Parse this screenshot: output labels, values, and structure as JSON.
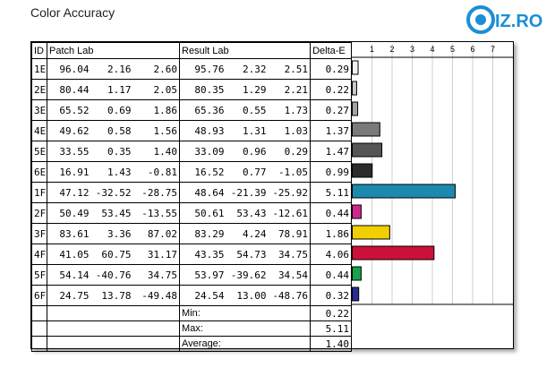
{
  "header": {
    "title": "Color Accuracy",
    "logo_text": "IZ.RO",
    "logo_color": "#1a8fd6"
  },
  "table": {
    "columns": [
      "ID",
      "Patch Lab",
      "Result Lab",
      "Delta-E"
    ],
    "rows": [
      {
        "id": "1E",
        "patch": [
          "96.04",
          "2.16",
          "2.60"
        ],
        "result": [
          "95.76",
          "2.32",
          "2.51"
        ],
        "de": "0.29"
      },
      {
        "id": "2E",
        "patch": [
          "80.44",
          "1.17",
          "2.05"
        ],
        "result": [
          "80.35",
          "1.29",
          "2.21"
        ],
        "de": "0.22"
      },
      {
        "id": "3E",
        "patch": [
          "65.52",
          "0.69",
          "1.86"
        ],
        "result": [
          "65.36",
          "0.55",
          "1.73"
        ],
        "de": "0.27"
      },
      {
        "id": "4E",
        "patch": [
          "49.62",
          "0.58",
          "1.56"
        ],
        "result": [
          "48.93",
          "1.31",
          "1.03"
        ],
        "de": "1.37"
      },
      {
        "id": "5E",
        "patch": [
          "33.55",
          "0.35",
          "1.40"
        ],
        "result": [
          "33.09",
          "0.96",
          "0.29"
        ],
        "de": "1.47"
      },
      {
        "id": "6E",
        "patch": [
          "16.91",
          "1.43",
          "-0.81"
        ],
        "result": [
          "16.52",
          "0.77",
          "-1.05"
        ],
        "de": "0.99"
      },
      {
        "id": "1F",
        "patch": [
          "47.12",
          "-32.52",
          "-28.75"
        ],
        "result": [
          "48.64",
          "-21.39",
          "-25.92"
        ],
        "de": "5.11"
      },
      {
        "id": "2F",
        "patch": [
          "50.49",
          "53.45",
          "-13.55"
        ],
        "result": [
          "50.61",
          "53.43",
          "-12.61"
        ],
        "de": "0.44"
      },
      {
        "id": "3F",
        "patch": [
          "83.61",
          "3.36",
          "87.02"
        ],
        "result": [
          "83.29",
          "4.24",
          "78.91"
        ],
        "de": "1.86"
      },
      {
        "id": "4F",
        "patch": [
          "41.05",
          "60.75",
          "31.17"
        ],
        "result": [
          "43.35",
          "54.73",
          "34.75"
        ],
        "de": "4.06"
      },
      {
        "id": "5F",
        "patch": [
          "54.14",
          "-40.76",
          "34.75"
        ],
        "result": [
          "53.97",
          "-39.62",
          "34.54"
        ],
        "de": "0.44"
      },
      {
        "id": "6F",
        "patch": [
          "24.75",
          "13.78",
          "-49.48"
        ],
        "result": [
          "24.54",
          "13.00",
          "-48.76"
        ],
        "de": "0.32"
      }
    ],
    "stats": [
      {
        "label": "Min:",
        "value": "0.22"
      },
      {
        "label": "Max:",
        "value": "5.11"
      },
      {
        "label": "Average:",
        "value": "1.40"
      }
    ]
  },
  "chart_data": {
    "type": "bar",
    "orientation": "horizontal",
    "title": "",
    "xlim": [
      0,
      7.5
    ],
    "xticks": [
      "1",
      "2",
      "3",
      "4",
      "5",
      "6",
      "7"
    ],
    "grid": true,
    "categories": [
      "1E",
      "2E",
      "3E",
      "4E",
      "5E",
      "6E",
      "1F",
      "2F",
      "3F",
      "4F",
      "5F",
      "6F"
    ],
    "values": [
      0.29,
      0.22,
      0.27,
      1.37,
      1.47,
      0.99,
      5.11,
      0.44,
      1.86,
      4.06,
      0.44,
      0.32
    ],
    "colors": [
      "#f2f2f2",
      "#c8c8c8",
      "#a3a3a3",
      "#7a7a7a",
      "#555555",
      "#2c2c2c",
      "#1b8aae",
      "#d0268e",
      "#f0d000",
      "#cc1139",
      "#16a34a",
      "#272f95"
    ]
  }
}
